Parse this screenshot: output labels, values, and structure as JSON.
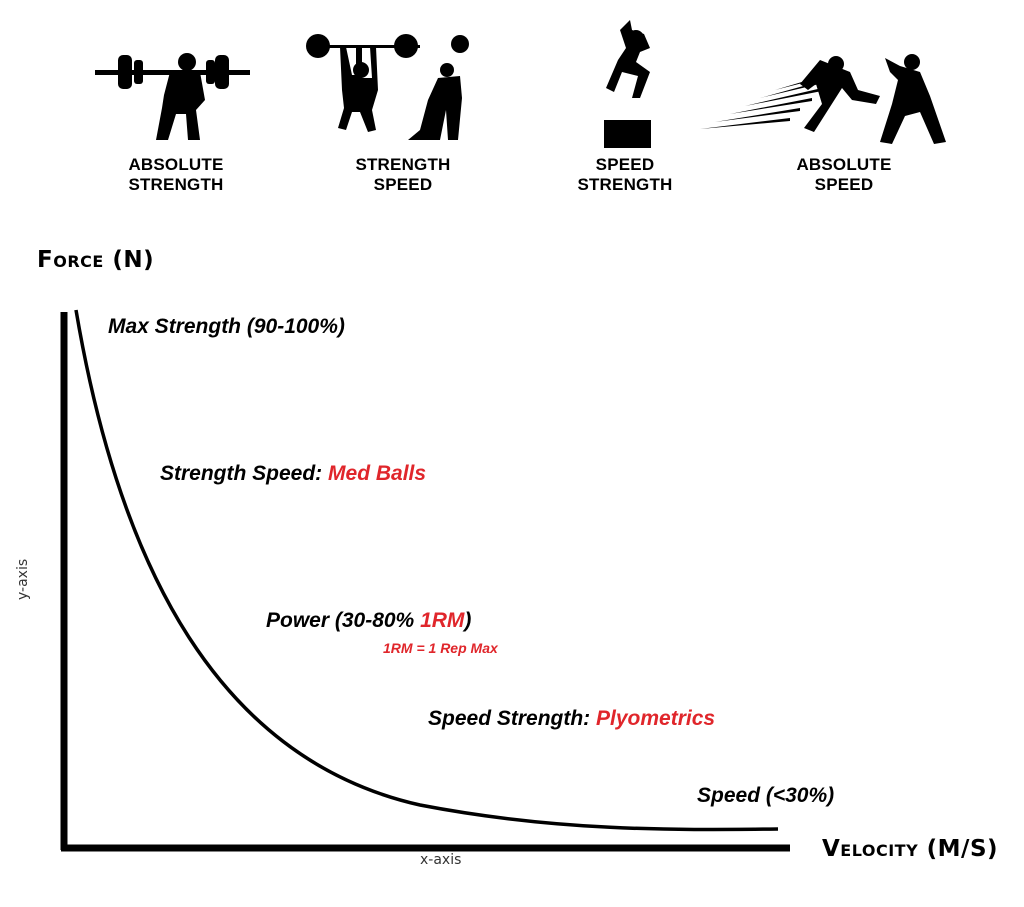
{
  "categories": [
    {
      "line1": "ABSOLUTE",
      "line2": "STRENGTH"
    },
    {
      "line1": "STRENGTH",
      "line2": "SPEED"
    },
    {
      "line1": "SPEED",
      "line2": "STRENGTH"
    },
    {
      "line1": "ABSOLUTE",
      "line2": "SPEED"
    }
  ],
  "axes": {
    "y_title": "Force (N)",
    "x_title": "Velocity (M/S)",
    "y_label": "y-axis",
    "x_label": "x-axis"
  },
  "annotations": {
    "max_strength": "Max Strength (90-100%)",
    "strength_speed_prefix": "Strength Speed: ",
    "strength_speed_highlight": "Med Balls",
    "power_prefix": "Power (30-80% ",
    "power_highlight": "1RM",
    "power_suffix": ")",
    "power_note": "1RM = 1 Rep Max",
    "speed_strength_prefix": "Speed Strength: ",
    "speed_strength_highlight": "Plyometrics",
    "speed": "Speed (<30%)"
  },
  "colors": {
    "highlight": "#e0262b",
    "ink": "#000000"
  }
}
